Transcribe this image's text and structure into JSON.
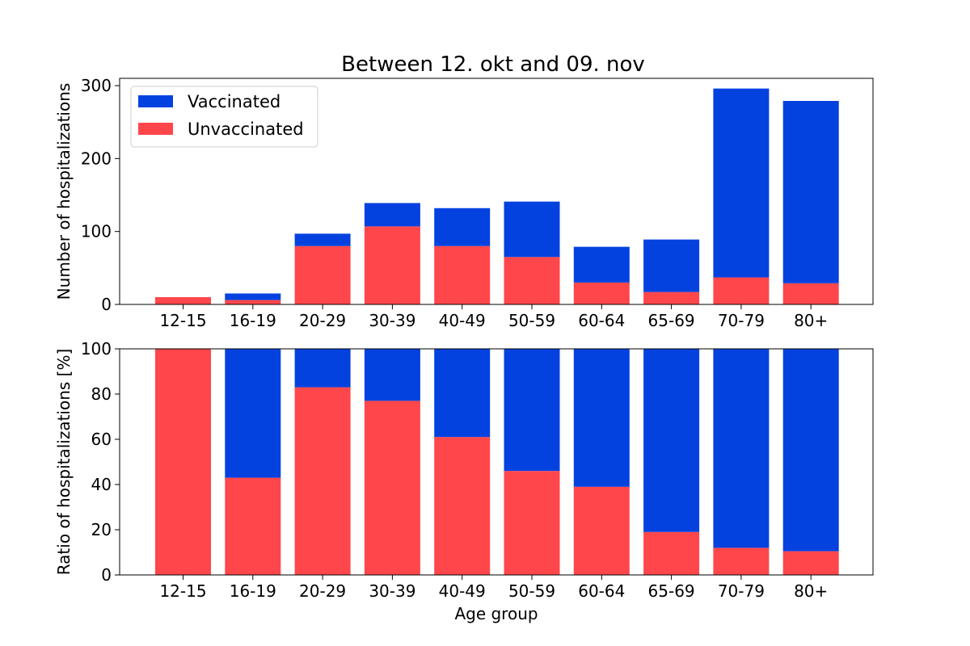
{
  "chart_data": [
    {
      "type": "bar",
      "stacked": true,
      "title": "Between 12. okt and 09. nov",
      "xlabel": "",
      "ylabel": "Number of hospitalizations",
      "categories": [
        "12-15",
        "16-19",
        "20-29",
        "30-39",
        "40-49",
        "50-59",
        "60-64",
        "65-69",
        "70-79",
        "80+"
      ],
      "ylim": [
        0,
        310
      ],
      "yticks": [
        0,
        100,
        200,
        300
      ],
      "series": [
        {
          "name": "Unvaccinated",
          "color": "#ff464b",
          "values": [
            10,
            6,
            80,
            107,
            80,
            65,
            30,
            17,
            37,
            29
          ]
        },
        {
          "name": "Vaccinated",
          "color": "#0442e0",
          "values": [
            0,
            9,
            17,
            32,
            52,
            76,
            49,
            72,
            259,
            250
          ]
        }
      ],
      "legend": {
        "placement": "top-left",
        "order": [
          "Vaccinated",
          "Unvaccinated"
        ]
      },
      "grid": false
    },
    {
      "type": "bar",
      "stacked": true,
      "title": "",
      "xlabel": "Age group",
      "ylabel": "Ratio of hospitalizations [%]",
      "categories": [
        "12-15",
        "16-19",
        "20-29",
        "30-39",
        "40-49",
        "50-59",
        "60-64",
        "65-69",
        "70-79",
        "80+"
      ],
      "ylim": [
        0,
        100
      ],
      "yticks": [
        0,
        20,
        40,
        60,
        80,
        100
      ],
      "series": [
        {
          "name": "Unvaccinated",
          "color": "#ff464b",
          "values": [
            100,
            43,
            83,
            77,
            61,
            46,
            39,
            19,
            12,
            10.5
          ]
        },
        {
          "name": "Vaccinated",
          "color": "#0442e0",
          "values": [
            0,
            57,
            17,
            23,
            39,
            54,
            61,
            81,
            88,
            89.5
          ]
        }
      ],
      "grid": false
    }
  ]
}
